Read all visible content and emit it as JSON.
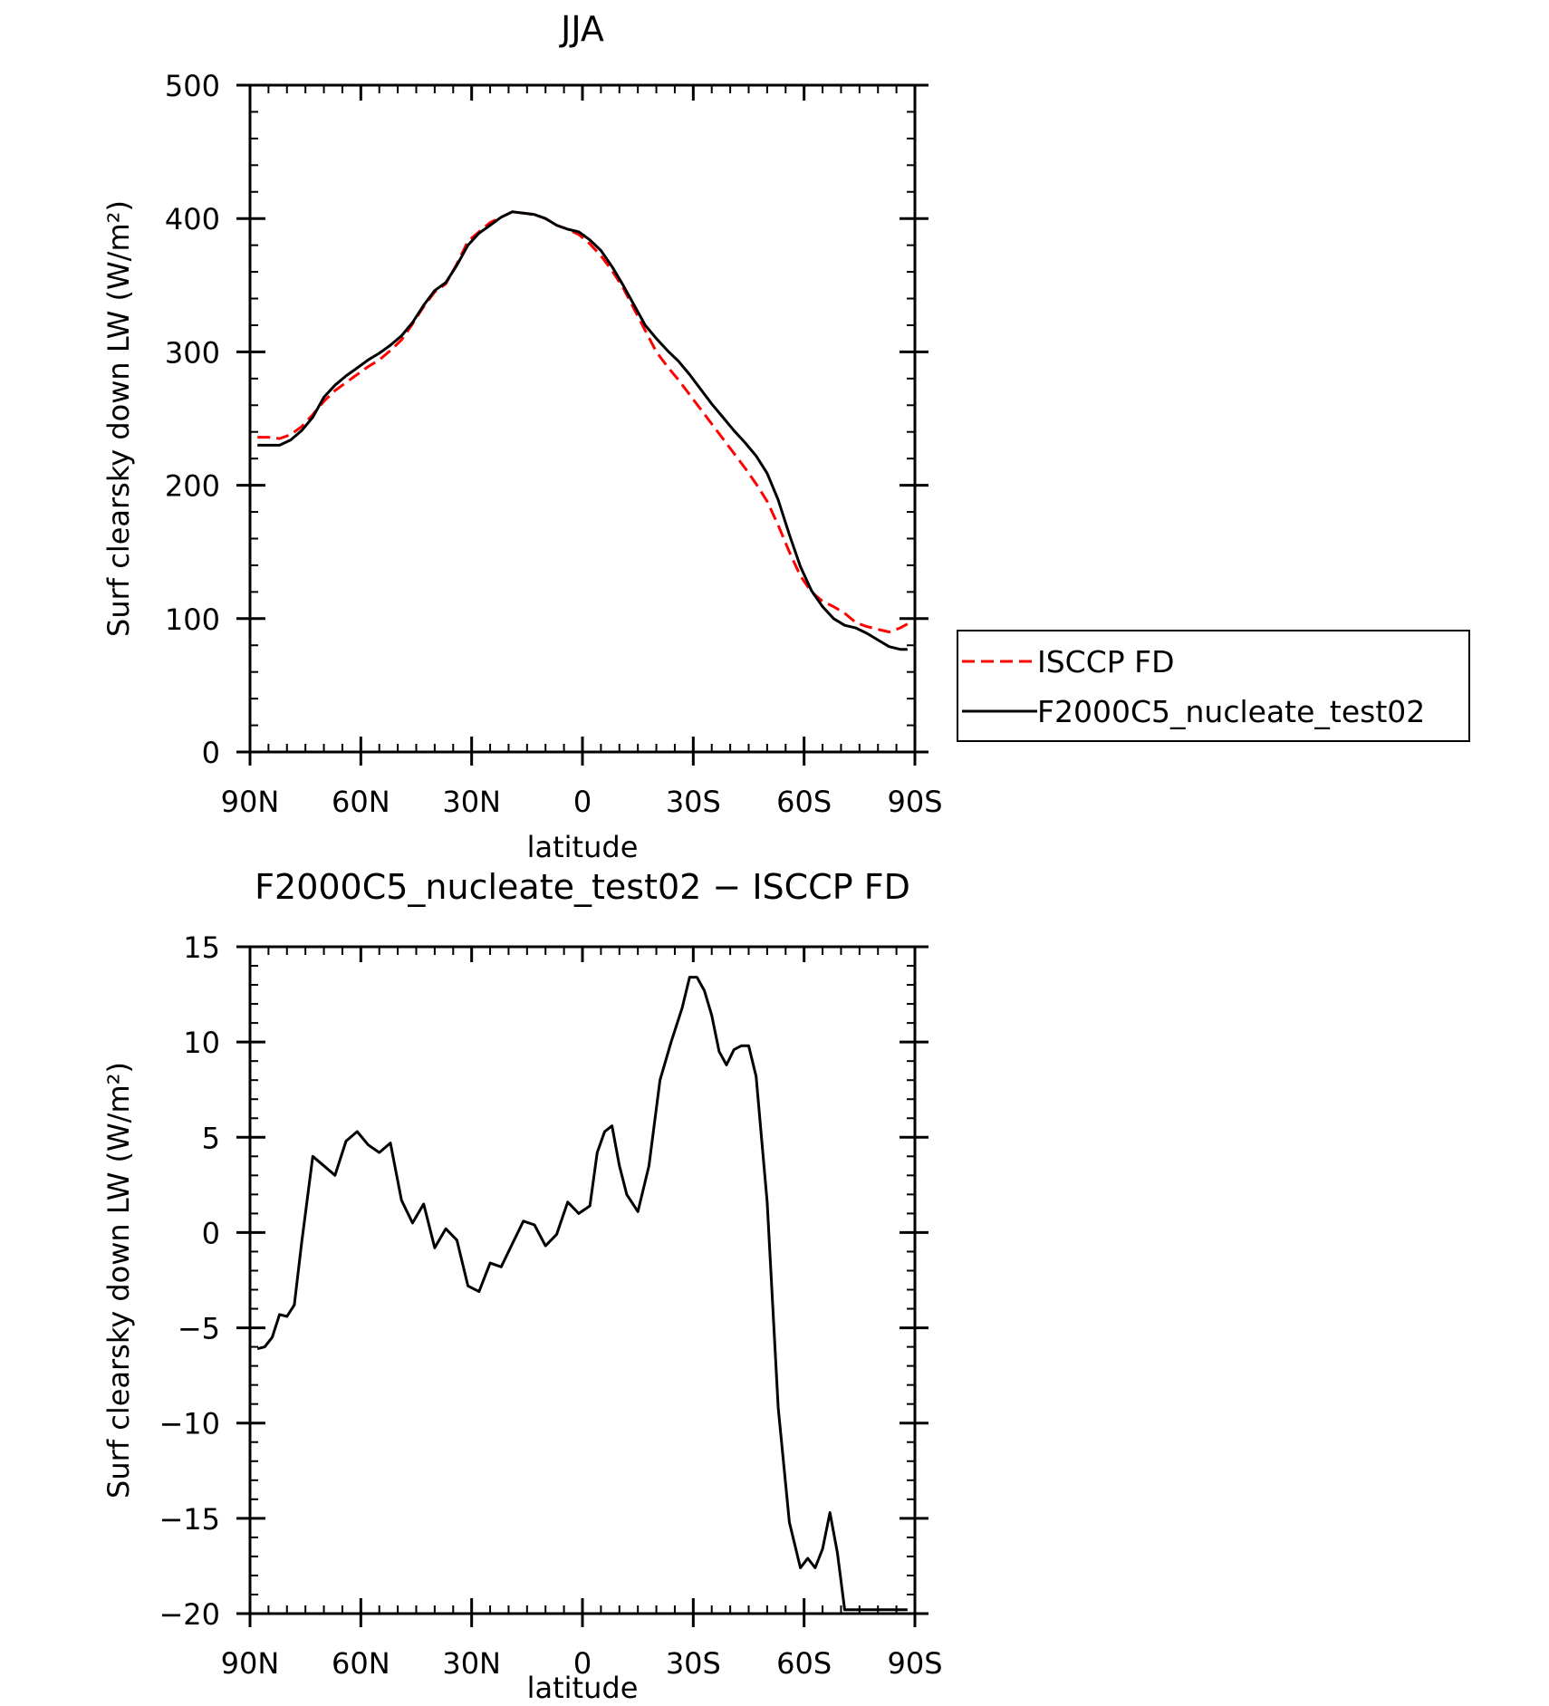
{
  "chart_data": [
    {
      "type": "line",
      "title": "JJA",
      "xlabel": "latitude",
      "ylabel": "Surf clearsky down LW (W/m²)",
      "xlim": [
        90,
        -90
      ],
      "ylim": [
        0,
        500
      ],
      "x_ticks": [
        {
          "value": 90,
          "label": "90N"
        },
        {
          "value": 60,
          "label": "60N"
        },
        {
          "value": 30,
          "label": "30N"
        },
        {
          "value": 0,
          "label": "0"
        },
        {
          "value": -30,
          "label": "30S"
        },
        {
          "value": -60,
          "label": "60S"
        },
        {
          "value": -90,
          "label": "90S"
        }
      ],
      "y_ticks": [
        {
          "value": 0,
          "label": "0"
        },
        {
          "value": 100,
          "label": "100"
        },
        {
          "value": 200,
          "label": "200"
        },
        {
          "value": 300,
          "label": "300"
        },
        {
          "value": 400,
          "label": "400"
        },
        {
          "value": 500,
          "label": "500"
        }
      ],
      "legend": {
        "position": "right"
      },
      "series": [
        {
          "name": "ISCCP FD",
          "color": "#ff0000",
          "dash": "dashed",
          "x": [
            88,
            85,
            82,
            79,
            76,
            73,
            70,
            67,
            64,
            61,
            58,
            55,
            52,
            49,
            46,
            43,
            40,
            37,
            34,
            31,
            28,
            25,
            22,
            19,
            16,
            13,
            10,
            7,
            4,
            1,
            -2,
            -5,
            -8,
            -11,
            -14,
            -17,
            -20,
            -23,
            -26,
            -29,
            -32,
            -35,
            -38,
            -41,
            -44,
            -47,
            -50,
            -53,
            -56,
            -59,
            -62,
            -65,
            -68,
            -71,
            -74,
            -77,
            -80,
            -83,
            -86,
            -88
          ],
          "y": [
            236,
            236,
            235,
            238,
            244,
            253,
            263,
            271,
            277,
            283,
            289,
            294,
            301,
            309,
            321,
            334,
            345,
            351,
            366,
            383,
            390,
            397,
            401,
            405,
            404,
            403,
            400,
            395,
            392,
            388,
            381,
            372,
            361,
            348,
            332,
            316,
            300,
            289,
            279,
            268,
            257,
            246,
            235,
            224,
            213,
            201,
            188,
            170,
            150,
            132,
            120,
            113,
            109,
            104,
            97,
            94,
            92,
            90,
            93,
            96
          ]
        },
        {
          "name": "F2000C5_nucleate_test02",
          "color": "#000000",
          "dash": "solid",
          "x": [
            88,
            85,
            82,
            79,
            76,
            73,
            70,
            67,
            64,
            61,
            58,
            55,
            52,
            49,
            46,
            43,
            40,
            37,
            34,
            31,
            28,
            25,
            22,
            19,
            16,
            13,
            10,
            7,
            4,
            1,
            -2,
            -5,
            -8,
            -11,
            -14,
            -17,
            -20,
            -23,
            -26,
            -29,
            -32,
            -35,
            -38,
            -41,
            -44,
            -47,
            -50,
            -53,
            -56,
            -59,
            -62,
            -65,
            -68,
            -71,
            -74,
            -77,
            -80,
            -83,
            -86,
            -88
          ],
          "y": [
            230,
            230,
            230,
            234,
            241,
            251,
            266,
            275,
            282,
            288,
            294,
            299,
            305,
            312,
            322,
            335,
            346,
            352,
            365,
            380,
            389,
            395,
            401,
            405,
            404,
            403,
            400,
            395,
            392,
            390,
            384,
            376,
            364,
            350,
            335,
            320,
            310,
            301,
            293,
            283,
            272,
            261,
            251,
            241,
            232,
            222,
            209,
            189,
            163,
            139,
            121,
            109,
            100,
            95,
            93,
            89,
            84,
            79,
            77,
            77
          ]
        }
      ]
    },
    {
      "type": "line",
      "title": "F2000C5_nucleate_test02 − ISCCP FD",
      "xlabel": "latitude",
      "ylabel": "Surf clearsky down LW (W/m²)",
      "xlim": [
        90,
        -90
      ],
      "ylim": [
        -20,
        15
      ],
      "x_ticks": [
        {
          "value": 90,
          "label": "90N"
        },
        {
          "value": 60,
          "label": "60N"
        },
        {
          "value": 30,
          "label": "30N"
        },
        {
          "value": 0,
          "label": "0"
        },
        {
          "value": -30,
          "label": "30S"
        },
        {
          "value": -60,
          "label": "60S"
        },
        {
          "value": -90,
          "label": "90S"
        }
      ],
      "y_ticks": [
        {
          "value": -20,
          "label": "−20"
        },
        {
          "value": -15,
          "label": "−15"
        },
        {
          "value": -10,
          "label": "−10"
        },
        {
          "value": -5,
          "label": "−5"
        },
        {
          "value": 0,
          "label": "0"
        },
        {
          "value": 5,
          "label": "5"
        },
        {
          "value": 10,
          "label": "10"
        },
        {
          "value": 15,
          "label": "15"
        }
      ],
      "series": [
        {
          "color": "#000000",
          "dash": "solid",
          "x": [
            88,
            86,
            84,
            82,
            80,
            78,
            76,
            73,
            70,
            67,
            64,
            61,
            58,
            55,
            52,
            49,
            46,
            43,
            40,
            37,
            34,
            31,
            28,
            25,
            22,
            19,
            16,
            13,
            10,
            7,
            4,
            1,
            -2,
            -4,
            -6,
            -8,
            -10,
            -12,
            -15,
            -18,
            -21,
            -24,
            -27,
            -29,
            -31,
            -33,
            -35,
            -37,
            -39,
            -41,
            -43,
            -45,
            -47,
            -50,
            -53,
            -56,
            -59,
            -61,
            -63,
            -65,
            -67,
            -69,
            -71,
            -73,
            -75,
            -77,
            -80,
            -82,
            -84,
            -86,
            -88
          ],
          "y": [
            -6.1,
            -6.0,
            -5.5,
            -4.3,
            -4.4,
            -3.8,
            -0.5,
            4.0,
            3.5,
            3.0,
            4.8,
            5.3,
            4.6,
            4.2,
            4.7,
            1.7,
            0.5,
            1.5,
            -0.8,
            0.2,
            -0.4,
            -2.8,
            -3.1,
            -1.6,
            -1.8,
            -0.6,
            0.6,
            0.4,
            -0.7,
            -0.1,
            1.6,
            1.0,
            1.4,
            4.2,
            5.3,
            5.6,
            3.5,
            2.0,
            1.1,
            3.5,
            8.0,
            10.0,
            11.8,
            13.4,
            13.4,
            12.7,
            11.4,
            9.5,
            8.8,
            9.6,
            9.8,
            9.8,
            8.2,
            1.6,
            -9.2,
            -15.2,
            -17.6,
            -17.1,
            -17.6,
            -16.6,
            -14.7,
            -16.8,
            -19.8,
            -19.8,
            -19.8,
            -19.8,
            -19.8,
            -19.8,
            -19.8,
            -19.8,
            -19.8
          ]
        }
      ]
    }
  ]
}
